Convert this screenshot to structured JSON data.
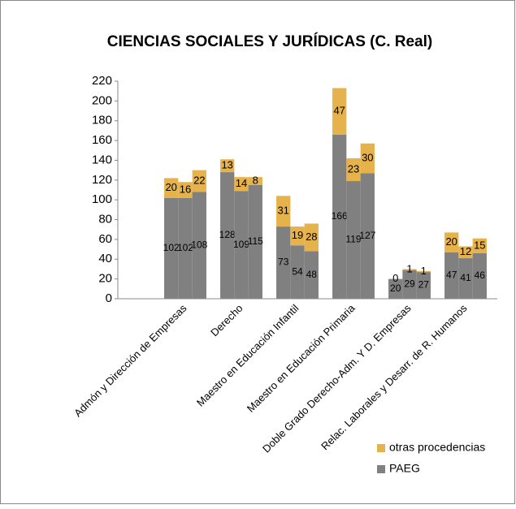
{
  "chart_data": {
    "type": "stacked_bar",
    "title": "CIENCIAS SOCIALES Y JURÍDICAS (C. Real)",
    "categories": [
      null,
      "Admón y Dirección de Empresas",
      null,
      null,
      "Derecho",
      null,
      null,
      "Maestro en Educación Infantil",
      null,
      null,
      "Maestro en Educación Primaria",
      null,
      null,
      "Doble Grado Derecho-Adm. Y D. Empresas",
      null,
      null,
      "Relac. Laborales y Desarr. de R. Humanos",
      null
    ],
    "series": [
      {
        "name": "PAEG",
        "color": "#808080",
        "values": [
          102,
          102,
          108,
          128,
          109,
          115,
          73,
          54,
          48,
          166,
          119,
          127,
          20,
          29,
          27,
          47,
          41,
          46
        ]
      },
      {
        "name": "otras procedencias",
        "color": "#e6b24c",
        "values": [
          20,
          16,
          22,
          13,
          14,
          8,
          31,
          19,
          28,
          47,
          23,
          30,
          0,
          1,
          1,
          20,
          12,
          15
        ]
      }
    ],
    "ylim": [
      0,
      220
    ],
    "yticks": [
      0,
      20,
      40,
      60,
      80,
      100,
      120,
      140,
      160,
      180,
      200,
      220
    ],
    "legend": "bottom-right"
  }
}
